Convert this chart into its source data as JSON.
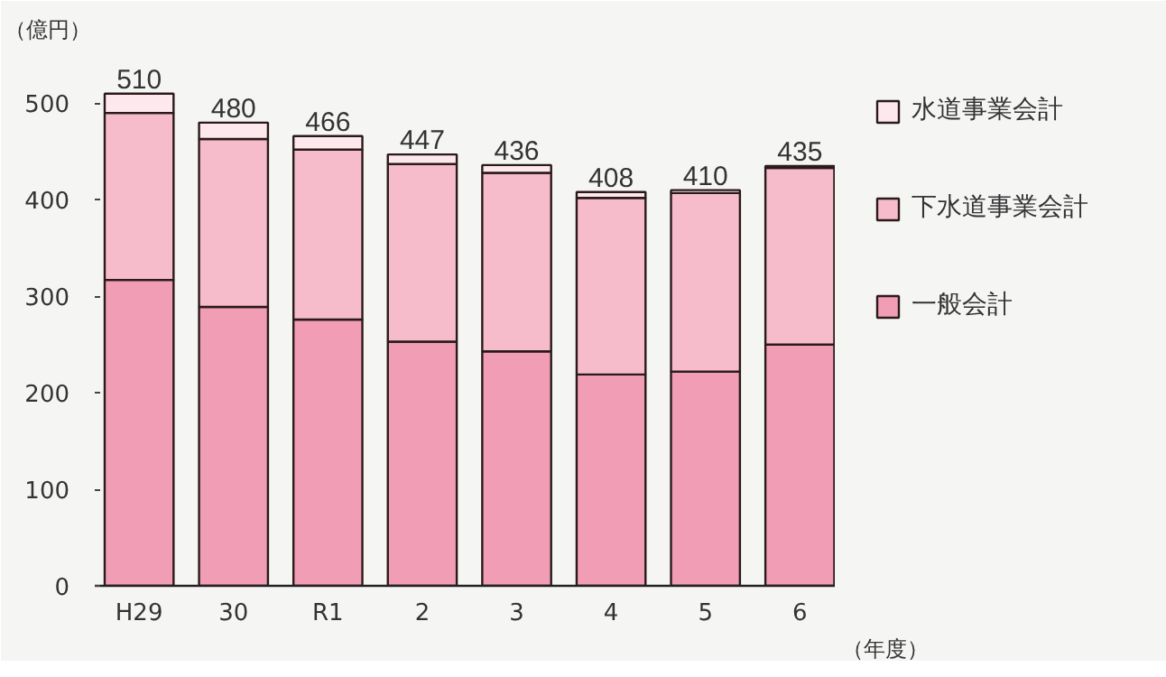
{
  "chart_data": {
    "type": "bar",
    "stacked": true,
    "ylabel": "（億円）",
    "xlabel": "（年度）",
    "categories": [
      "H29",
      "30",
      "R1",
      "2",
      "3",
      "4",
      "5",
      "6"
    ],
    "series": [
      {
        "name": "一般会計",
        "color": "#f19db5",
        "values": [
          317,
          289,
          276,
          253,
          243,
          219,
          222,
          250
        ]
      },
      {
        "name": "下水道事業会計",
        "color": "#f6bccb",
        "values": [
          173,
          174,
          176,
          184,
          185,
          183,
          185,
          183
        ]
      },
      {
        "name": "水道事業会計",
        "color": "#fde8ee",
        "values": [
          20,
          17,
          14,
          10,
          8,
          6,
          3,
          2
        ]
      }
    ],
    "totals": [
      "510",
      "480",
      "466",
      "447",
      "436",
      "408",
      "410",
      "435"
    ],
    "ylim": [
      0,
      550
    ],
    "yticks": [
      0,
      100,
      200,
      300,
      400,
      500
    ],
    "grid": false,
    "legend": "right"
  }
}
